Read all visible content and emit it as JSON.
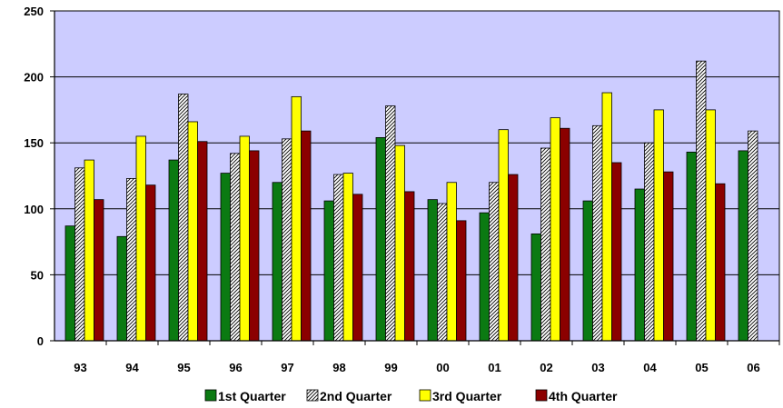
{
  "chart_data": {
    "type": "bar",
    "categories": [
      "93",
      "94",
      "95",
      "96",
      "97",
      "98",
      "99",
      "00",
      "01",
      "02",
      "03",
      "04",
      "05",
      "06"
    ],
    "series": [
      {
        "name": "1st Quarter",
        "values": [
          87,
          79,
          137,
          127,
          120,
          106,
          154,
          107,
          97,
          81,
          106,
          115,
          143,
          144
        ],
        "color": "#0b7a12",
        "pattern": "solid"
      },
      {
        "name": "2nd Quarter",
        "values": [
          131,
          123,
          187,
          142,
          153,
          126,
          178,
          104,
          120,
          146,
          163,
          150,
          212,
          159
        ],
        "color": "#ffffff",
        "pattern": "diagonal-hatch"
      },
      {
        "name": "3rd Quarter",
        "values": [
          137,
          155,
          166,
          155,
          185,
          127,
          148,
          120,
          160,
          169,
          188,
          175,
          175,
          null
        ],
        "color": "#ffff00",
        "pattern": "solid"
      },
      {
        "name": "4th Quarter",
        "values": [
          107,
          118,
          151,
          144,
          159,
          111,
          113,
          91,
          126,
          161,
          135,
          128,
          119,
          null
        ],
        "color": "#8b0000",
        "pattern": "solid"
      }
    ],
    "ylim": [
      0,
      250
    ],
    "yticks": [
      "0",
      "50",
      "100",
      "150",
      "200",
      "250"
    ],
    "grid": true,
    "plot_background": "#ccccff",
    "legend_position": "bottom",
    "title": "",
    "xlabel": "",
    "ylabel": ""
  }
}
